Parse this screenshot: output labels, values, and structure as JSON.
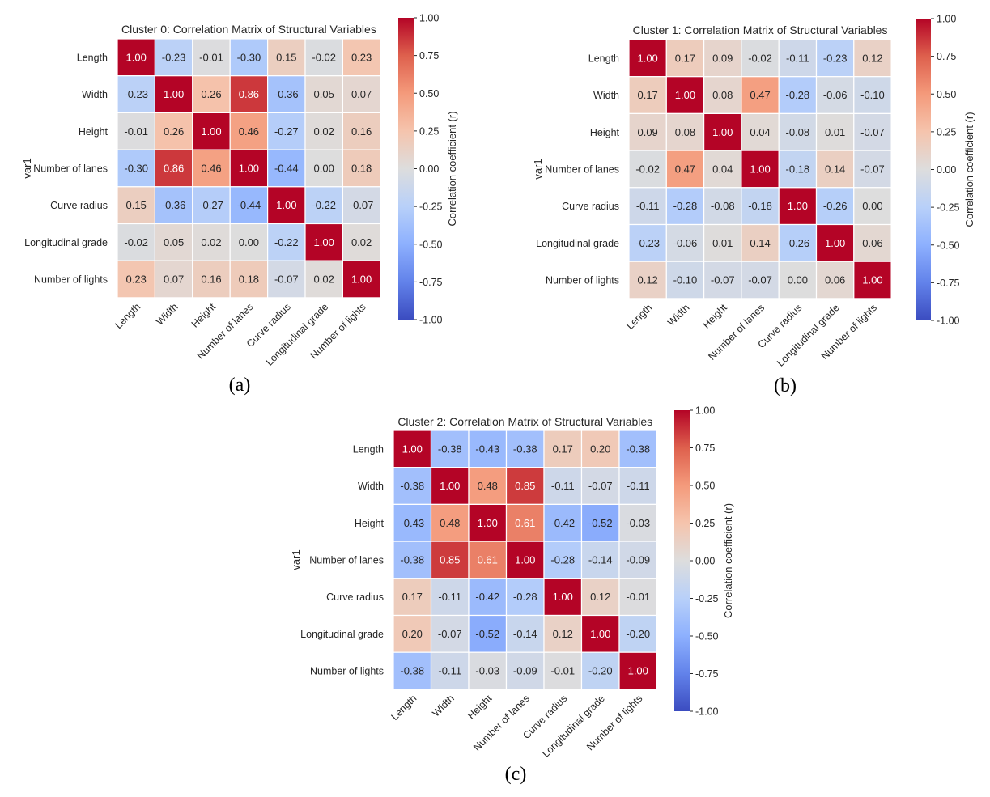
{
  "figure": {
    "captions": [
      "(a)",
      "(b)",
      "(c)"
    ]
  },
  "chart_data": [
    {
      "type": "heatmap",
      "title": "Cluster 0: Correlation Matrix of Structural Variables",
      "caption": "(a)",
      "ylabel": "var1",
      "xlabel": "",
      "colorbar_label": "Correlation coefficient (r)",
      "colorbar_ticks": [
        "1.00",
        "0.75",
        "0.50",
        "0.25",
        "0.00",
        "-0.25",
        "-0.50",
        "-0.75",
        "-1.00"
      ],
      "vmin": -1,
      "vmax": 1,
      "colormap": "coolwarm",
      "rows": [
        "Length",
        "Width",
        "Height",
        "Number of lanes",
        "Curve radius",
        "Longitudinal grade",
        "Number of lights"
      ],
      "cols": [
        "Length",
        "Width",
        "Height",
        "Number of lanes",
        "Curve radius",
        "Longitudinal grade",
        "Number of lights"
      ],
      "values": [
        [
          1.0,
          -0.23,
          -0.01,
          -0.3,
          0.15,
          -0.02,
          0.23
        ],
        [
          -0.23,
          1.0,
          0.26,
          0.86,
          -0.36,
          0.05,
          0.07
        ],
        [
          -0.01,
          0.26,
          1.0,
          0.46,
          -0.27,
          0.02,
          0.16
        ],
        [
          -0.3,
          0.86,
          0.46,
          1.0,
          -0.44,
          0.0,
          0.18
        ],
        [
          0.15,
          -0.36,
          -0.27,
          -0.44,
          1.0,
          -0.22,
          -0.07
        ],
        [
          -0.02,
          0.05,
          0.02,
          0.0,
          -0.22,
          1.0,
          0.02
        ],
        [
          0.23,
          0.07,
          0.16,
          0.18,
          -0.07,
          0.02,
          1.0
        ]
      ]
    },
    {
      "type": "heatmap",
      "title": "Cluster 1: Correlation Matrix of Structural Variables",
      "caption": "(b)",
      "ylabel": "var1",
      "xlabel": "",
      "colorbar_label": "Correlation coefficient (r)",
      "colorbar_ticks": [
        "1.00",
        "0.75",
        "0.50",
        "0.25",
        "0.00",
        "-0.25",
        "-0.50",
        "-0.75",
        "-1.00"
      ],
      "vmin": -1,
      "vmax": 1,
      "colormap": "coolwarm",
      "rows": [
        "Length",
        "Width",
        "Height",
        "Number of lanes",
        "Curve radius",
        "Longitudinal grade",
        "Number of lights"
      ],
      "cols": [
        "Length",
        "Width",
        "Height",
        "Number of lanes",
        "Curve radius",
        "Longitudinal grade",
        "Number of lights"
      ],
      "values": [
        [
          1.0,
          0.17,
          0.09,
          -0.02,
          -0.11,
          -0.23,
          0.12
        ],
        [
          0.17,
          1.0,
          0.08,
          0.47,
          -0.28,
          -0.06,
          -0.1
        ],
        [
          0.09,
          0.08,
          1.0,
          0.04,
          -0.08,
          0.01,
          -0.07
        ],
        [
          -0.02,
          0.47,
          0.04,
          1.0,
          -0.18,
          0.14,
          -0.07
        ],
        [
          -0.11,
          -0.28,
          -0.08,
          -0.18,
          1.0,
          -0.26,
          0.0
        ],
        [
          -0.23,
          -0.06,
          0.01,
          0.14,
          -0.26,
          1.0,
          0.06
        ],
        [
          0.12,
          -0.1,
          -0.07,
          -0.07,
          0.0,
          0.06,
          1.0
        ]
      ]
    },
    {
      "type": "heatmap",
      "title": "Cluster 2: Correlation Matrix of Structural Variables",
      "caption": "(c)",
      "ylabel": "var1",
      "xlabel": "",
      "colorbar_label": "Correlation coefficient (r)",
      "colorbar_ticks": [
        "1.00",
        "0.75",
        "0.50",
        "0.25",
        "0.00",
        "-0.25",
        "-0.50",
        "-0.75",
        "-1.00"
      ],
      "vmin": -1,
      "vmax": 1,
      "colormap": "coolwarm",
      "rows": [
        "Length",
        "Width",
        "Height",
        "Number of lanes",
        "Curve radius",
        "Longitudinal grade",
        "Number of lights"
      ],
      "cols": [
        "Length",
        "Width",
        "Height",
        "Number of lanes",
        "Curve radius",
        "Longitudinal grade",
        "Number of lights"
      ],
      "values": [
        [
          1.0,
          -0.38,
          -0.43,
          -0.38,
          0.17,
          0.2,
          -0.38
        ],
        [
          -0.38,
          1.0,
          0.48,
          0.85,
          -0.11,
          -0.07,
          -0.11
        ],
        [
          -0.43,
          0.48,
          1.0,
          0.61,
          -0.42,
          -0.52,
          -0.03
        ],
        [
          -0.38,
          0.85,
          0.61,
          1.0,
          -0.28,
          -0.14,
          -0.09
        ],
        [
          0.17,
          -0.11,
          -0.42,
          -0.28,
          1.0,
          0.12,
          -0.01
        ],
        [
          0.2,
          -0.07,
          -0.52,
          -0.14,
          0.12,
          1.0,
          -0.2
        ],
        [
          -0.38,
          -0.11,
          -0.03,
          -0.09,
          -0.01,
          -0.2,
          1.0
        ]
      ]
    }
  ]
}
